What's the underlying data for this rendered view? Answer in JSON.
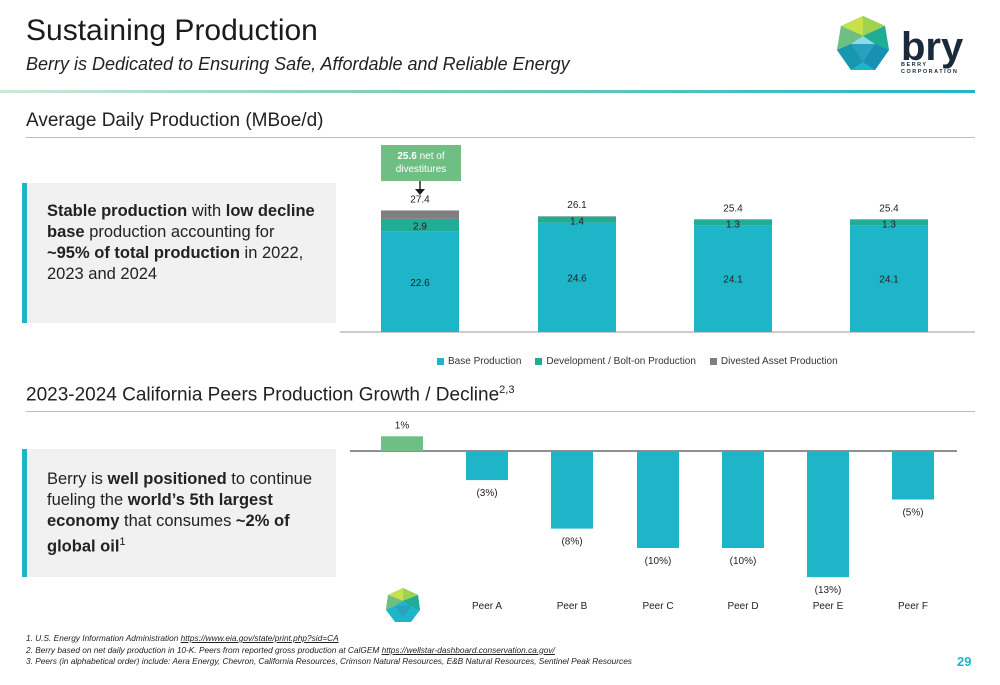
{
  "header": {
    "title": "Sustaining Production",
    "subtitle": "Berry is Dedicated to Ensuring Safe, Affordable and Reliable Energy",
    "logo_wordmark": "bry",
    "logo_tagline_1": "BERRY",
    "logo_tagline_2": "CORPORATION"
  },
  "section1": {
    "title": "Average Daily Production (MBoe/d)",
    "callout_parts": [
      {
        "t": "Stable production",
        "b": true
      },
      {
        "t": " with ",
        "b": false
      },
      {
        "t": "low decline base",
        "b": true
      },
      {
        "t": " production accounting  for ",
        "b": false
      },
      {
        "t": "~95% of total production",
        "b": true
      },
      {
        "t": " in 2022, 2023 and 2024",
        "b": false
      }
    ],
    "divest_note_value": "25.6",
    "divest_note_text": " net of divestitures"
  },
  "section2": {
    "title": "2023-2024 California Peers Production Growth / Decline",
    "title_sup": "2,3",
    "callout_parts": [
      {
        "t": "Berry is ",
        "b": false
      },
      {
        "t": "well positioned",
        "b": true
      },
      {
        "t": " to continue fueling the ",
        "b": false
      },
      {
        "t": "world’s 5th largest economy",
        "b": true
      },
      {
        "t": " that consumes ",
        "b": false
      },
      {
        "t": "~2% of global oil",
        "b": true
      },
      {
        "t": "1",
        "b": false,
        "sup": true
      }
    ]
  },
  "chart_data": [
    {
      "type": "bar",
      "stacked": true,
      "title": "Average Daily Production (MBoe/d)",
      "categories": [
        "",
        "",
        "",
        ""
      ],
      "series": [
        {
          "name": "Base Production",
          "color": "#1fb5c9",
          "values": [
            22.6,
            24.6,
            24.1,
            24.1
          ],
          "labels": [
            "22.6",
            "24.6",
            "24.1",
            "24.1"
          ]
        },
        {
          "name": "Development / Bolt-on Production",
          "color": "#20ad96",
          "values": [
            2.9,
            1.4,
            1.3,
            1.3
          ],
          "labels": [
            "2.9",
            "1.4",
            "1.3",
            "1.3"
          ]
        },
        {
          "name": "Divested Asset Production",
          "color": "#7f7f7f",
          "values": [
            1.9,
            0.1,
            0,
            0
          ],
          "labels": [
            "",
            "",
            "",
            ""
          ]
        }
      ],
      "totals": [
        "27.4",
        "26.1",
        "25.4",
        "25.4"
      ],
      "ylim": [
        0,
        27.5
      ],
      "legend_position": "bottom",
      "grid": false
    },
    {
      "type": "bar",
      "title": "2023-2024 California Peers Production Growth / Decline",
      "categories": [
        "",
        "Peer A",
        "Peer B",
        "Peer C",
        "Peer D",
        "Peer E",
        "Peer F"
      ],
      "values": [
        1,
        -3,
        -8,
        -10,
        -10,
        -13,
        -5
      ],
      "labels": [
        "1%",
        "(3%)",
        "(8%)",
        "(10%)",
        "(10%)",
        "(13%)",
        "(5%)"
      ],
      "colors": [
        "#6fbf85",
        "#1fb5c9",
        "#1fb5c9",
        "#1fb5c9",
        "#1fb5c9",
        "#1fb5c9",
        "#1fb5c9"
      ],
      "ylim": [
        -13,
        1.5
      ],
      "grid": false
    }
  ],
  "footnotes": [
    {
      "text": "1.  U.S. Energy Information Administration ",
      "link": "https://www.eia.gov/state/print.php?sid=CA"
    },
    {
      "text": "2.  Berry based on net daily production in 10-K. Peers from reported gross production at CalGEM  ",
      "link": "https://wellstar-dashboard.conservation.ca.gov/"
    },
    {
      "text": "3.  Peers (in alphabetical order) include: Aera Energy, Chevron, California Resources, Crimson Natural Resources, E&B Natural Resources, Sentinel Peak Resources",
      "link": ""
    }
  ],
  "page_number": "29"
}
